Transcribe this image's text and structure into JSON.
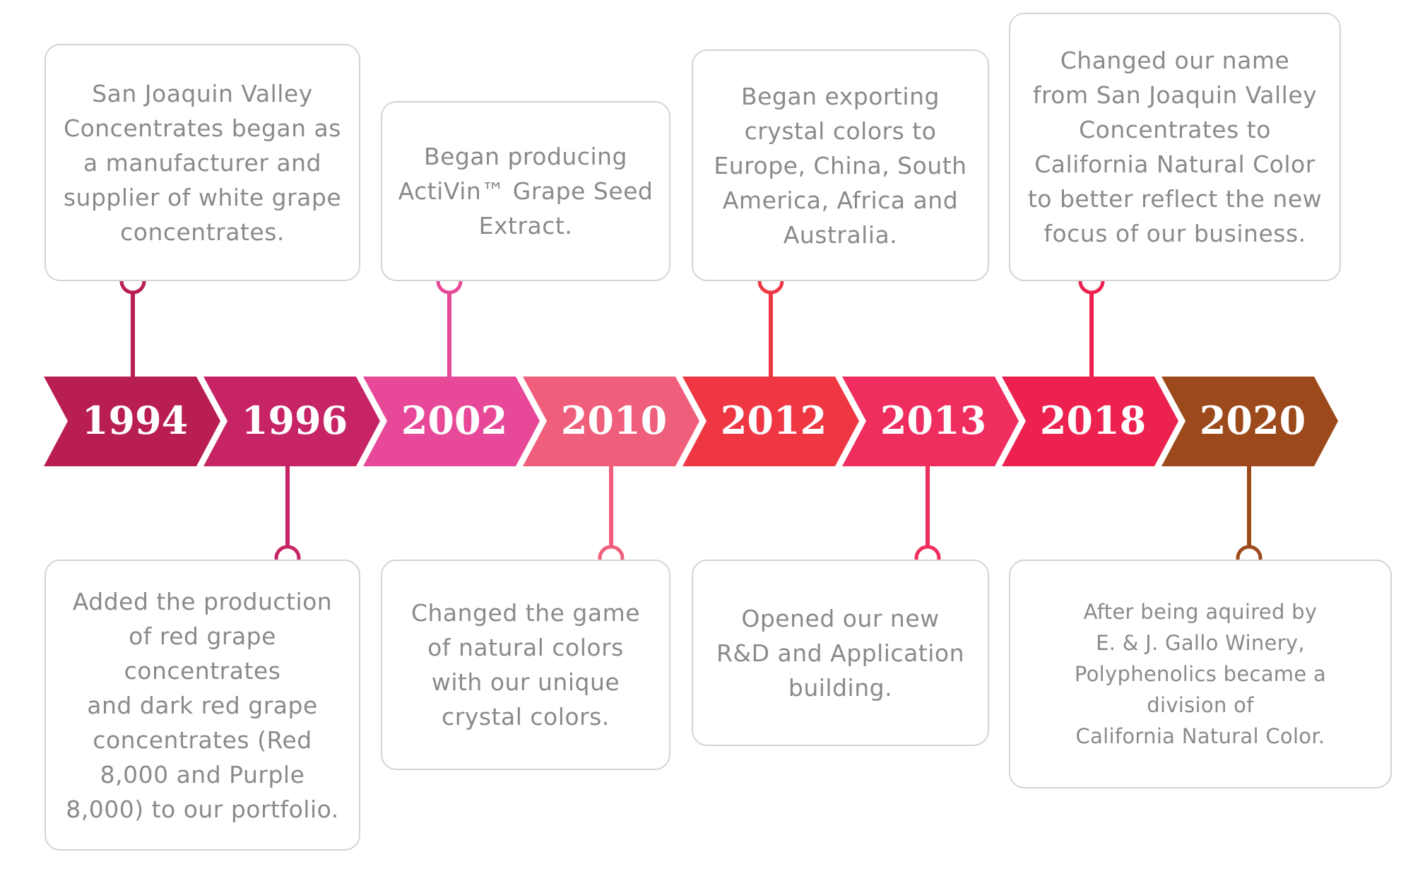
{
  "colors": {
    "1994": "#b81e54",
    "1996": "#c72466",
    "2002": "#e74998",
    "2010": "#ef5f7c",
    "2012": "#ef3744",
    "2013": "#ef2d5f",
    "2018": "#ed2150",
    "2020": "#9c4a1b",
    "card_border": "#d4d4d4",
    "card_text": "#8a8a8a"
  },
  "milestones": [
    {
      "year": "1994",
      "side": "top",
      "text": "San Joaquin Valley\nConcentrates began as\na manufacturer and\nsupplier of white grape\nconcentrates."
    },
    {
      "year": "1996",
      "side": "bottom",
      "text": "Added the production\nof red grape concentrates\nand dark red grape\nconcentrates (Red\n8,000 and Purple\n8,000) to our portfolio."
    },
    {
      "year": "2002",
      "side": "top",
      "text": "Began producing\nActiVin™ Grape Seed\nExtract."
    },
    {
      "year": "2010",
      "side": "bottom",
      "text": "Changed the game\nof natural colors\nwith our unique\ncrystal colors."
    },
    {
      "year": "2012",
      "side": "top",
      "text": "Began exporting\ncrystal colors to\nEurope, China, South\nAmerica, Africa and\nAustralia."
    },
    {
      "year": "2013",
      "side": "bottom",
      "text": "Opened our new\nR&D and Application\nbuilding."
    },
    {
      "year": "2018",
      "side": "top",
      "text": "Changed our name\nfrom San Joaquin Valley\nConcentrates to\nCalifornia Natural Color\nto better reflect the new\nfocus of our business."
    },
    {
      "year": "2020",
      "side": "bottom",
      "text": "After being aquired by\nE. & J. Gallo Winery,\nPolyphenolics became a\ndivision of\nCalifornia Natural Color."
    }
  ]
}
